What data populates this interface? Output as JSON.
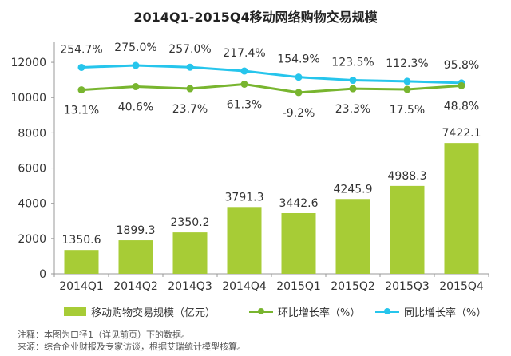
{
  "title": "2014Q1-2015Q4移动网络购物交易规模",
  "colors": {
    "bars": "#a7cc36",
    "qoq_line": "#78b52f",
    "yoy_line": "#26c5ec",
    "axis": "#999999",
    "text": "#333333"
  },
  "chart_data": {
    "type": "bar",
    "categories": [
      "2014Q1",
      "2014Q2",
      "2014Q3",
      "2014Q4",
      "2015Q1",
      "2015Q2",
      "2015Q3",
      "2015Q4"
    ],
    "series": [
      {
        "name": "移动购物交易规模（亿元）",
        "values": [
          1350.6,
          1899.3,
          2350.2,
          3791.3,
          3442.6,
          4245.9,
          4988.3,
          7422.1
        ]
      },
      {
        "name": "环比增长率（%）",
        "type": "line",
        "values": [
          13.1,
          40.6,
          23.7,
          61.3,
          -9.2,
          23.3,
          17.5,
          48.8
        ],
        "labels": [
          "13.1%",
          "40.6%",
          "23.7%",
          "61.3%",
          "-9.2%",
          "23.3%",
          "17.5%",
          "48.8%"
        ]
      },
      {
        "name": "同比增长率（%）",
        "type": "line",
        "values": [
          254.7,
          275.0,
          257.0,
          217.4,
          154.9,
          123.5,
          112.3,
          95.8
        ],
        "labels": [
          "254.7%",
          "275.0%",
          "257.0%",
          "217.4%",
          "154.9%",
          "123.5%",
          "112.3%",
          "95.8%"
        ]
      }
    ],
    "bar_labels": [
      "1350.6",
      "1899.3",
      "2350.2",
      "3791.3",
      "3442.6",
      "4245.9",
      "4988.3",
      "7422.1"
    ],
    "yticks": [
      "0",
      "2000",
      "4000",
      "6000",
      "8000",
      "10000",
      "12000"
    ],
    "ylim": [
      0,
      13000
    ],
    "grid": false,
    "legend_position": "bottom"
  },
  "legend": {
    "bars": "移动购物交易规模（亿元）",
    "qoq": "环比增长率（%）",
    "yoy": "同比增长率（%）"
  },
  "notes": {
    "note": "注释：本图为口径1（详见前页）下的数据。",
    "source": "来源：综合企业财报及专家访谈，根据艾瑞统计模型核算。"
  }
}
